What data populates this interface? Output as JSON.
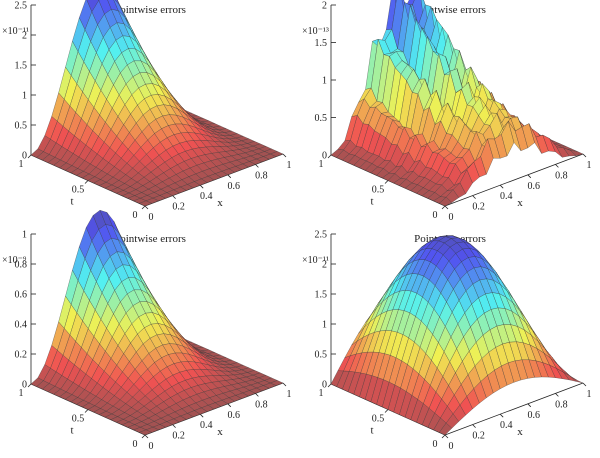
{
  "chart_data": [
    {
      "type": "surface",
      "title": "Pointwise errors",
      "xlabel": "x",
      "ylabel": "t",
      "multiplier": "×10⁻¹¹",
      "zlim": [
        0,
        2.5
      ],
      "ztick_labels": [
        "0",
        "0.5",
        "1",
        "1.5",
        "2",
        "2.5"
      ],
      "xtick_labels": [
        "0",
        "0.2",
        "0.4",
        "0.6",
        "0.8",
        "1"
      ],
      "ttick_labels": [
        "0",
        "0.5",
        "1"
      ],
      "shape": "single-peak",
      "peak": 2.5,
      "peak_location": {
        "x": 0.4,
        "t": 1.0
      }
    },
    {
      "type": "surface",
      "title": "Pointwise errors",
      "xlabel": "x",
      "ylabel": "t",
      "multiplier": "×10⁻¹³",
      "zlim": [
        0,
        2
      ],
      "ztick_labels": [
        "0",
        "0.5",
        "1",
        "1.5",
        "2"
      ],
      "xtick_labels": [
        "0",
        "0.2",
        "0.4",
        "0.6",
        "0.8",
        "1"
      ],
      "ttick_labels": [
        "0",
        "0.5",
        "1"
      ],
      "shape": "oscillatory",
      "peak": 2.0,
      "peak_location": {
        "x": 0.35,
        "t": 1.0
      }
    },
    {
      "type": "surface",
      "title": "Pointwise errors",
      "xlabel": "x",
      "ylabel": "t",
      "multiplier": "×10⁻⁹",
      "zlim": [
        0,
        1
      ],
      "ztick_labels": [
        "0",
        "0.2",
        "0.4",
        "0.6",
        "0.8",
        "1"
      ],
      "xtick_labels": [
        "0",
        "0.2",
        "0.4",
        "0.6",
        "0.8",
        "1"
      ],
      "ttick_labels": [
        "0",
        "0.5",
        "1"
      ],
      "shape": "single-peak",
      "peak": 1.0,
      "peak_location": {
        "x": 0.4,
        "t": 1.0
      }
    },
    {
      "type": "surface",
      "title": "Pointwise errors",
      "xlabel": "x",
      "ylabel": "t",
      "multiplier": "×10⁻¹¹",
      "zlim": [
        0,
        2.5
      ],
      "ztick_labels": [
        "0",
        "0.5",
        "1",
        "1.5",
        "2",
        "2.5"
      ],
      "xtick_labels": [
        "0",
        "0.2",
        "0.4",
        "0.6",
        "0.8",
        "1"
      ],
      "ttick_labels": [
        "0",
        "0.5",
        "1"
      ],
      "shape": "broad-peak",
      "peak": 2.5,
      "peak_location": {
        "x": 0.5,
        "t": 0.7
      }
    }
  ]
}
